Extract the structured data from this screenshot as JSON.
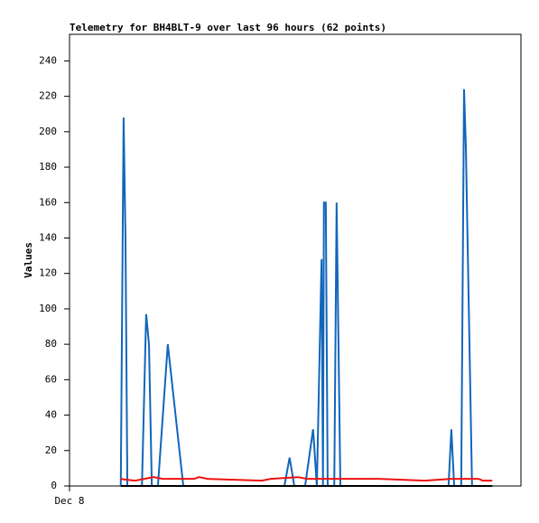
{
  "chart_data": {
    "type": "line",
    "title": "Telemetry for BH4BLT-9 over last 96 hours (62 points)",
    "ylabel": "Values",
    "xlim": [
      0,
      96
    ],
    "xticks": [
      {
        "value": 0,
        "label": "Dec 8"
      }
    ],
    "ylim": [
      0,
      255
    ],
    "yticks": [
      0,
      20,
      40,
      60,
      80,
      100,
      120,
      140,
      160,
      180,
      200,
      220,
      240
    ],
    "grid": false,
    "series": [
      {
        "color": "#1166bb",
        "x": [
          10.9,
          11.5,
          11.9,
          12.3,
          15.4,
          16.3,
          16.9,
          17.5,
          18.8,
          20.9,
          24.2,
          45.7,
          46.8,
          47.8,
          50.1,
          51.8,
          52.6,
          53.6,
          53.9,
          54.1,
          54.5,
          54.9,
          56.3,
          56.8,
          57.6,
          80.6,
          81.2,
          81.8,
          83.3,
          83.9,
          84.3,
          85.6
        ],
        "values": [
          0,
          208,
          140,
          0,
          0,
          97,
          80,
          0,
          0,
          80,
          0,
          0,
          16,
          0,
          0,
          32,
          0,
          128,
          0,
          160,
          160,
          0,
          0,
          160,
          0,
          0,
          32,
          0,
          0,
          224,
          190,
          0
        ]
      },
      {
        "color": "#ee1111",
        "x": [
          10.8,
          12.1,
          14.0,
          15.9,
          17.9,
          19.8,
          23.6,
          26.5,
          27.5,
          29.4,
          35.1,
          40.9,
          42.8,
          48.6,
          50.5,
          62.0,
          65.9,
          75.5,
          81.2,
          87.0,
          87.9,
          89.9
        ],
        "values": [
          4,
          3.5,
          3,
          4,
          5,
          4,
          4,
          4,
          5,
          4,
          3.5,
          3,
          4,
          5,
          4,
          4,
          4,
          3,
          4,
          4,
          3,
          3
        ]
      },
      {
        "color": "#000000",
        "x": [
          10.9,
          89.9
        ],
        "values": [
          0,
          0
        ]
      }
    ]
  }
}
